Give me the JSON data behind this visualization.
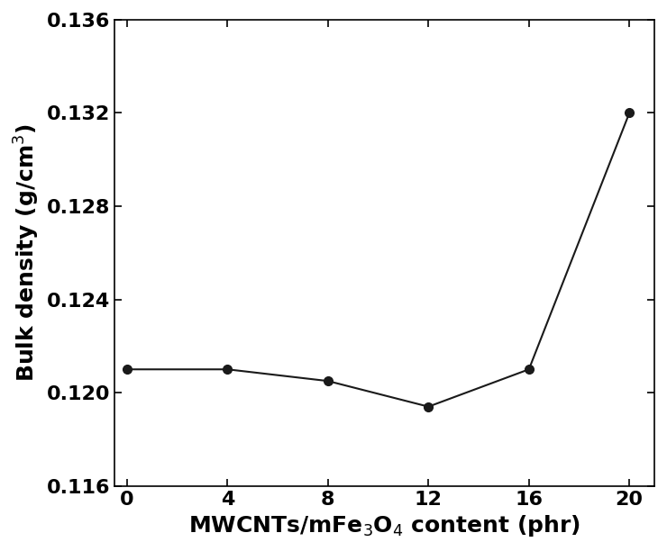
{
  "x": [
    0,
    4,
    8,
    12,
    16,
    20
  ],
  "y": [
    0.121,
    0.121,
    0.1205,
    0.1194,
    0.121,
    0.132
  ],
  "xlabel": "MWCNTs/mFe$_3$O$_4$ content (phr)",
  "ylabel": "Bulk density (g/cm$^3$)",
  "xlim": [
    -0.5,
    21
  ],
  "ylim": [
    0.116,
    0.136
  ],
  "xticks": [
    0,
    4,
    8,
    12,
    16,
    20
  ],
  "yticks": [
    0.116,
    0.12,
    0.124,
    0.128,
    0.132,
    0.136
  ],
  "line_color": "#1a1a1a",
  "marker": "o",
  "marker_size": 7,
  "line_width": 1.5,
  "marker_facecolor": "#1a1a1a",
  "marker_edgecolor": "#1a1a1a",
  "background_color": "#ffffff",
  "tick_labelsize": 16,
  "axis_labelsize": 18,
  "bold_labels": true
}
